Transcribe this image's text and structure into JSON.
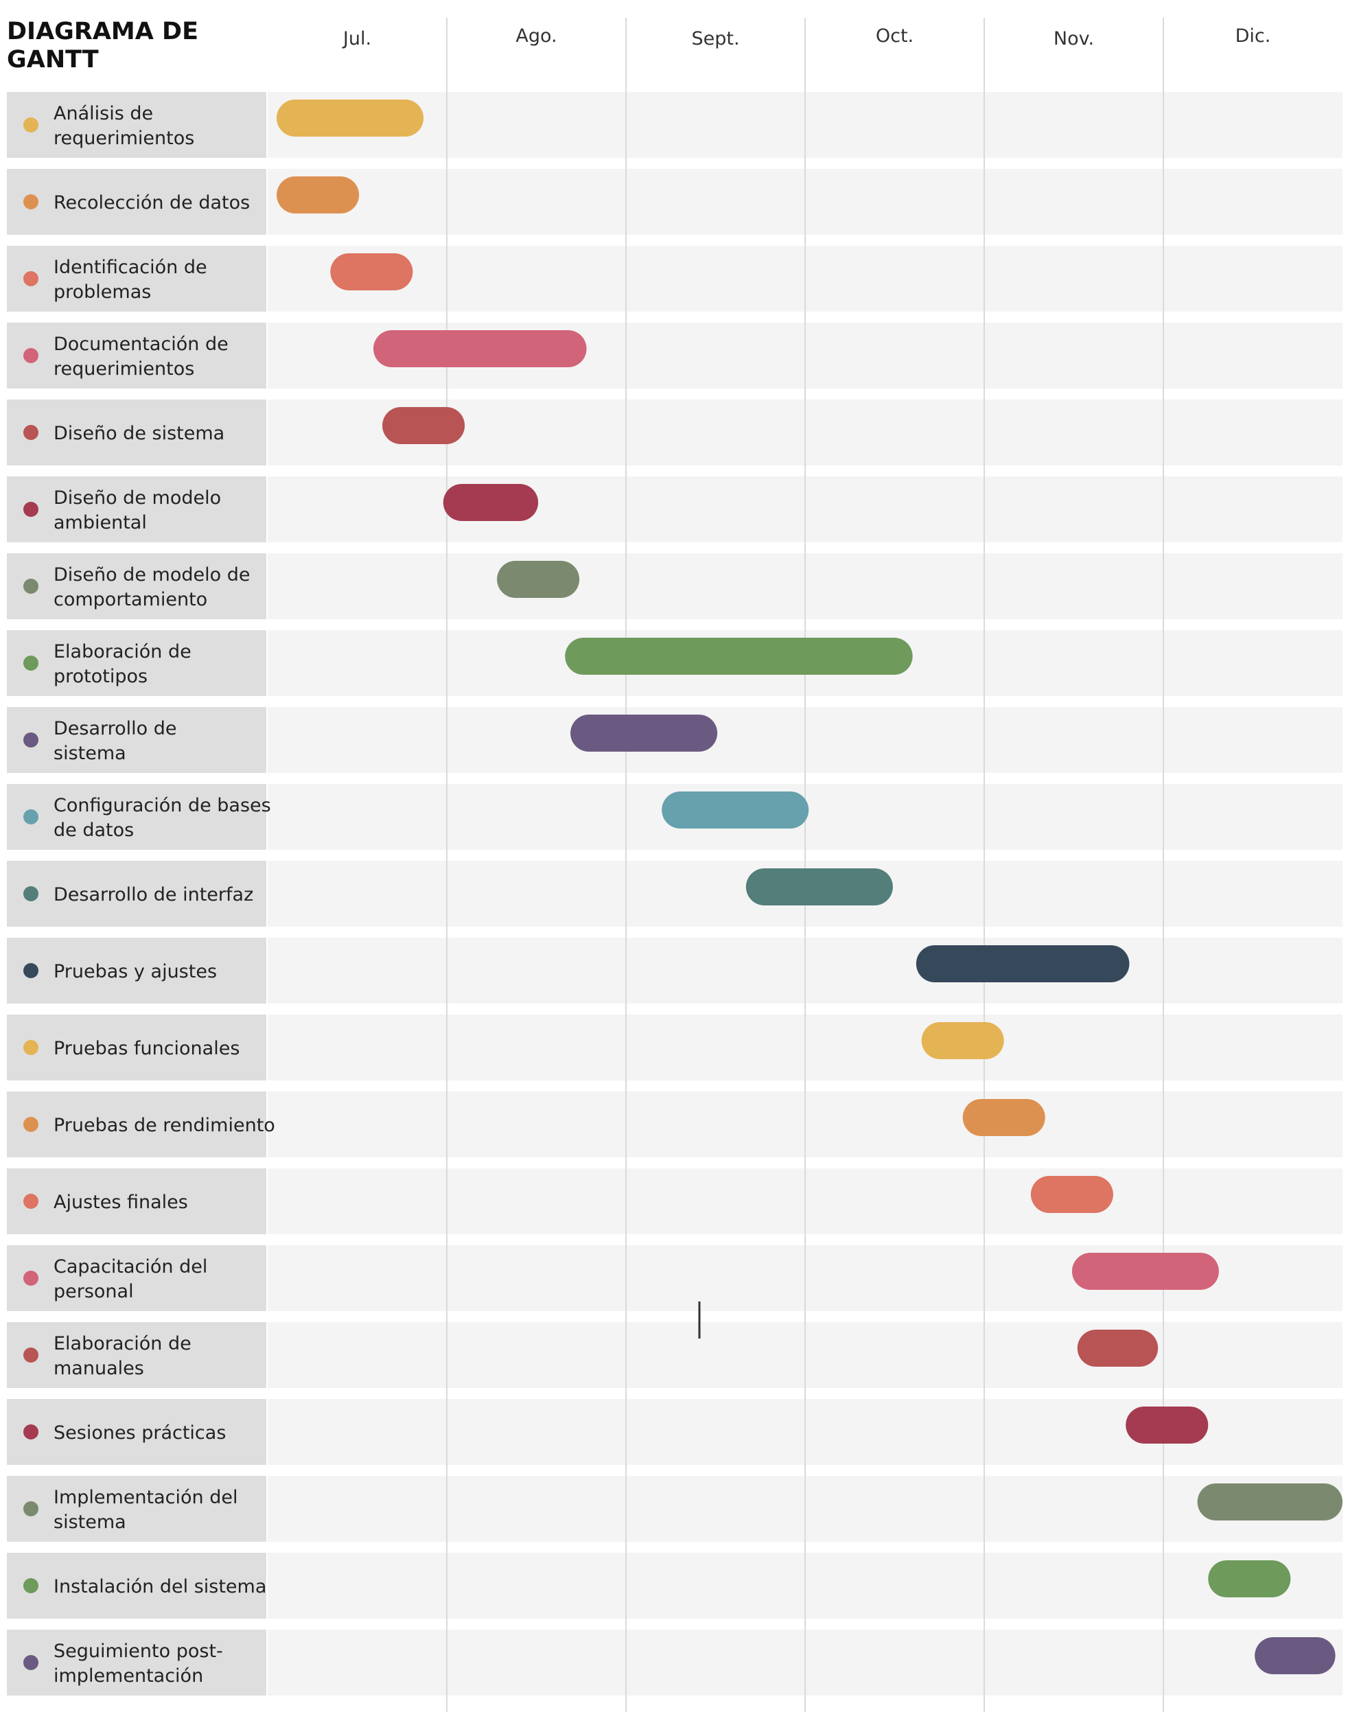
{
  "chart_data": {
    "type": "gantt",
    "title_lines": [
      "DIAGRAMA DE",
      "GANTT"
    ],
    "months": [
      "Jul.",
      "Ago.",
      "Sept.",
      "Oct.",
      "Nov.",
      "Dic."
    ],
    "x_unit": "months from start of Jul.",
    "xlim": [
      0,
      6
    ],
    "grid": true,
    "tasks": [
      {
        "label_lines": [
          "Análisis de",
          "requerimientos"
        ],
        "start": 0.05,
        "end": 0.87,
        "color": "#E4B354"
      },
      {
        "label_lines": [
          "Recolección de datos"
        ],
        "start": 0.05,
        "end": 0.51,
        "color": "#DD9150"
      },
      {
        "label_lines": [
          "Identificación de",
          "problemas"
        ],
        "start": 0.35,
        "end": 0.81,
        "color": "#DE7462"
      },
      {
        "label_lines": [
          "Documentación de",
          "requerimientos"
        ],
        "start": 0.59,
        "end": 1.78,
        "color": "#D2647A"
      },
      {
        "label_lines": [
          "Diseño de sistema"
        ],
        "start": 0.64,
        "end": 1.1,
        "color": "#B85454"
      },
      {
        "label_lines": [
          "Diseño de modelo",
          "ambiental"
        ],
        "start": 0.98,
        "end": 1.51,
        "color": "#A43B50"
      },
      {
        "label_lines": [
          "Diseño de modelo de",
          "comportamiento"
        ],
        "start": 1.28,
        "end": 1.74,
        "color": "#7B8A6E"
      },
      {
        "label_lines": [
          "Elaboración de",
          "prototipos"
        ],
        "start": 1.66,
        "end": 3.6,
        "color": "#6E9A5C"
      },
      {
        "label_lines": [
          "Desarrollo de",
          "sistema"
        ],
        "start": 1.69,
        "end": 2.51,
        "color": "#6A5A81"
      },
      {
        "label_lines": [
          "Configuración de bases",
          "de datos"
        ],
        "start": 2.2,
        "end": 3.02,
        "color": "#67A1AD"
      },
      {
        "label_lines": [
          "Desarrollo de interfaz"
        ],
        "start": 2.67,
        "end": 3.49,
        "color": "#537E79"
      },
      {
        "label_lines": [
          "Pruebas y ajustes"
        ],
        "start": 3.62,
        "end": 4.81,
        "color": "#36495B"
      },
      {
        "label_lines": [
          "Pruebas funcionales"
        ],
        "start": 3.65,
        "end": 4.11,
        "color": "#E4B354"
      },
      {
        "label_lines": [
          "Pruebas de rendimiento"
        ],
        "start": 3.88,
        "end": 4.34,
        "color": "#DD9150"
      },
      {
        "label_lines": [
          "Ajustes finales"
        ],
        "start": 4.26,
        "end": 4.72,
        "color": "#DE7462"
      },
      {
        "label_lines": [
          "Capacitación del",
          "personal"
        ],
        "start": 4.49,
        "end": 5.31,
        "color": "#D2647A"
      },
      {
        "label_lines": [
          "Elaboración de",
          "manuales"
        ],
        "start": 4.52,
        "end": 4.97,
        "color": "#B85454"
      },
      {
        "label_lines": [
          "Sesiones prácticas"
        ],
        "start": 4.79,
        "end": 5.25,
        "color": "#A43B50"
      },
      {
        "label_lines": [
          "Implementación del",
          "sistema"
        ],
        "start": 5.19,
        "end": 6.0,
        "color": "#7B8A6E"
      },
      {
        "label_lines": [
          "Instalación del sistema"
        ],
        "start": 5.25,
        "end": 5.71,
        "color": "#6E9A5C"
      },
      {
        "label_lines": [
          "Seguimiento post-",
          "implementación"
        ],
        "start": 5.51,
        "end": 5.96,
        "color": "#6A5A81"
      }
    ]
  }
}
